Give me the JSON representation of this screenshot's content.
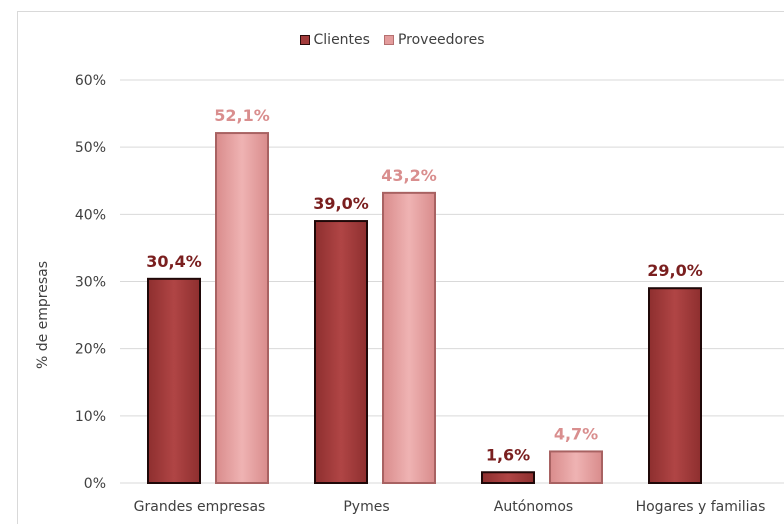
{
  "chart_data": {
    "type": "bar",
    "categories": [
      "Grandes empresas",
      "Pymes",
      "Autónomos",
      "Hogares y familias"
    ],
    "series": [
      {
        "name": "Clientes",
        "values": [
          30.4,
          39.0,
          1.6,
          29.0
        ],
        "labels": [
          "30,4%",
          "39,0%",
          "1,6%",
          "29,0%"
        ],
        "color": "#a33b3b",
        "label_color": "#7a1f1f"
      },
      {
        "name": "Proveedores",
        "values": [
          52.1,
          43.2,
          4.7,
          null
        ],
        "labels": [
          "52,1%",
          "43,2%",
          "4,7%",
          ""
        ],
        "color": "#e39c9c",
        "label_color": "#d98e8e"
      }
    ],
    "ylabel": "% de empresas",
    "ylim": [
      0,
      60
    ],
    "yticks": [
      0,
      10,
      20,
      30,
      40,
      50,
      60
    ],
    "ytick_labels": [
      "0%",
      "10%",
      "20%",
      "30%",
      "40%",
      "50%",
      "60%"
    ],
    "grid": true,
    "legend_position": "top-center"
  }
}
